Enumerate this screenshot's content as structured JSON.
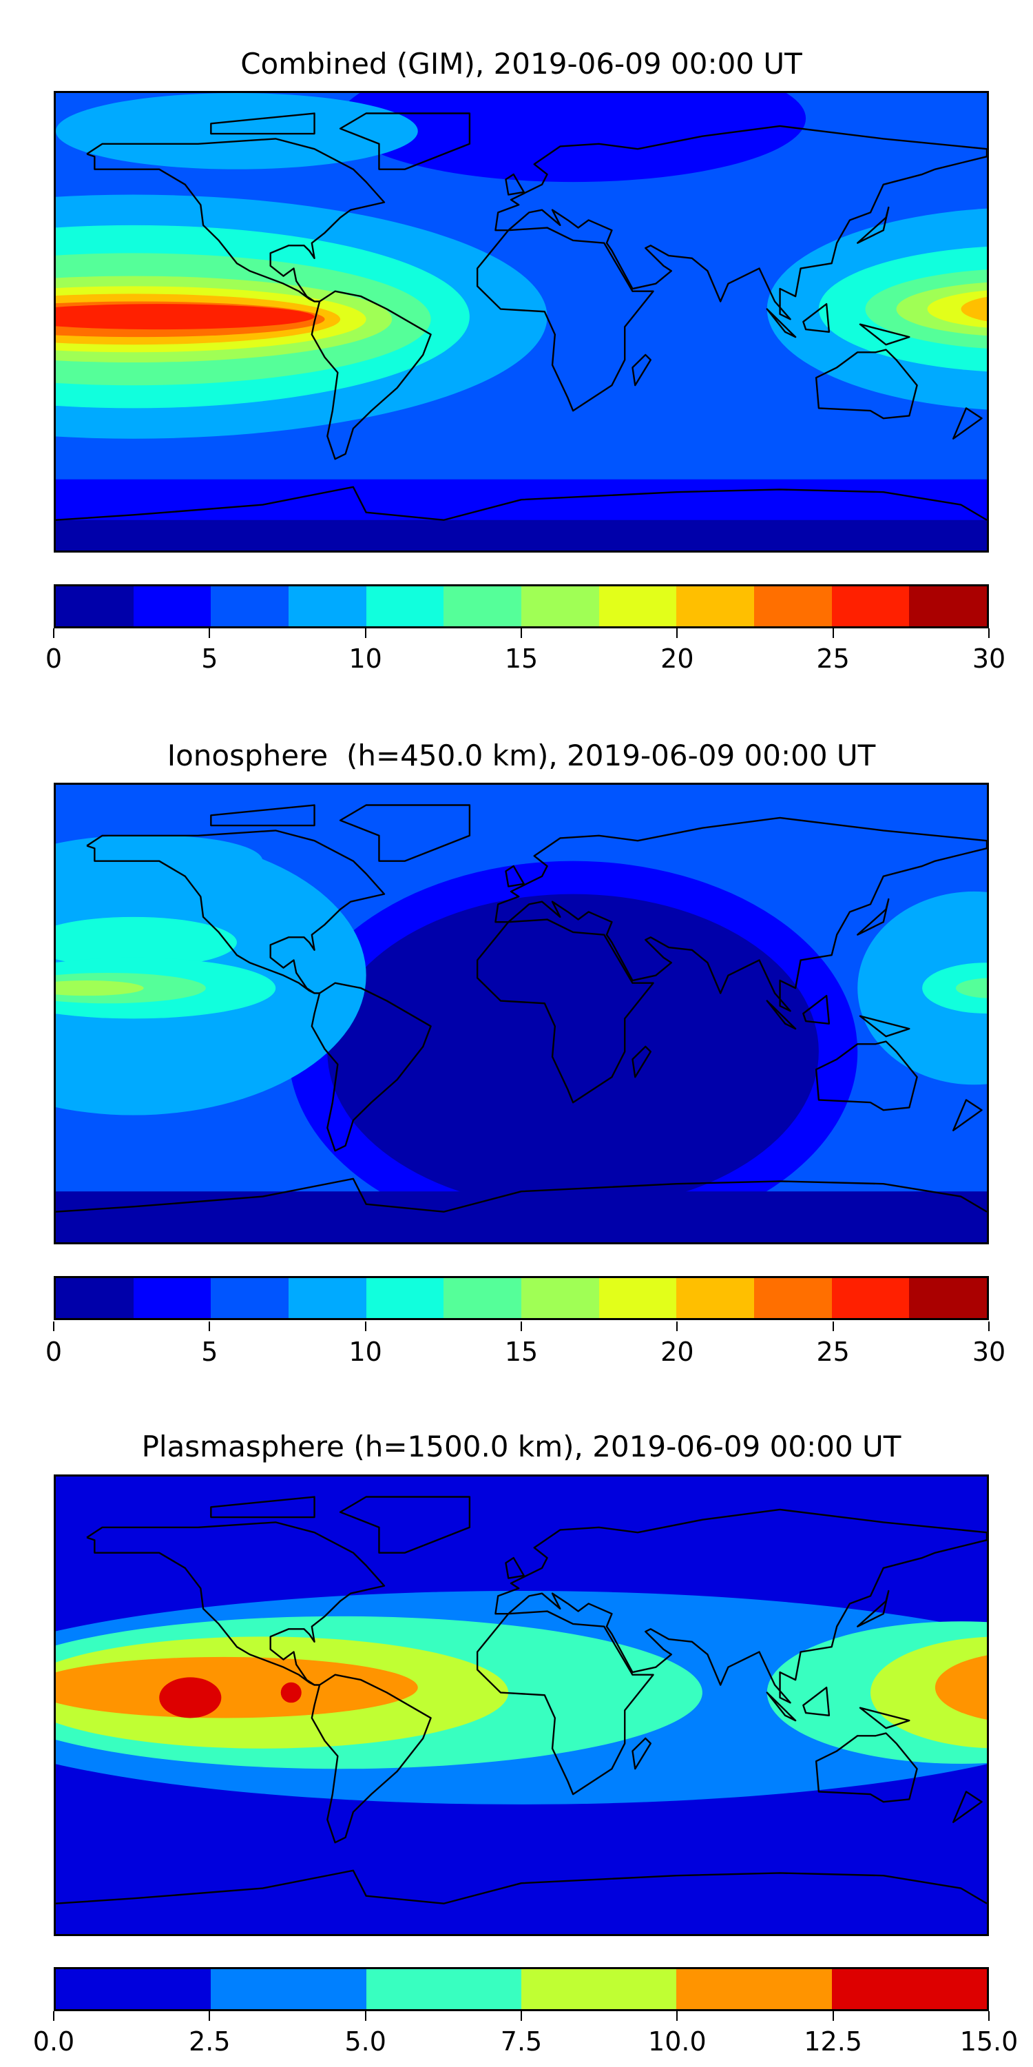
{
  "chart_data": [
    {
      "type": "heatmap",
      "title": "Combined (GIM), 2019-06-09 00:00 UT",
      "projection": "plate carree world map with coastlines",
      "colorbar": {
        "range": [
          0,
          30
        ],
        "levels": [
          0,
          2.5,
          5,
          7.5,
          10,
          12.5,
          15,
          17.5,
          20,
          22.5,
          25,
          27.5,
          30
        ],
        "colors": [
          "#0000aa",
          "#0000ff",
          "#0055ff",
          "#00aaff",
          "#11ffdd",
          "#55ff99",
          "#a0ff55",
          "#e2ff1a",
          "#ffbf00",
          "#ff6f00",
          "#ff2000",
          "#aa0000"
        ],
        "ticks": [
          "0",
          "5",
          "10",
          "15",
          "20",
          "25",
          "30"
        ]
      },
      "features": "maximum (25-27.5) over equatorial east Pacific; secondary maximum (20-22.5) over western Pacific near 180E; minimum (0-2.5) over Antarctica"
    },
    {
      "type": "heatmap",
      "title": "Ionosphere  (h=450.0 km), 2019-06-09 00:00 UT",
      "projection": "plate carree world map with coastlines",
      "colorbar": {
        "range": [
          0,
          30
        ],
        "levels": [
          0,
          2.5,
          5,
          7.5,
          10,
          12.5,
          15,
          17.5,
          20,
          22.5,
          25,
          27.5,
          30
        ],
        "colors": [
          "#0000aa",
          "#0000ff",
          "#0055ff",
          "#00aaff",
          "#11ffdd",
          "#55ff99",
          "#a0ff55",
          "#e2ff1a",
          "#ffbf00",
          "#ff6f00",
          "#ff2000",
          "#aa0000"
        ],
        "ticks": [
          "0",
          "5",
          "10",
          "15",
          "20",
          "25",
          "30"
        ]
      },
      "features": "maximum (15-17.5) over central Pacific near 10N; minimum (0-2.5) over Atlantic, Africa and southern latitudes"
    },
    {
      "type": "heatmap",
      "title": "Plasmasphere (h=1500.0 km), 2019-06-09 00:00 UT",
      "projection": "plate carree world map with coastlines",
      "colorbar": {
        "range": [
          0,
          15
        ],
        "levels": [
          0,
          2.5,
          5,
          7.5,
          10,
          12.5,
          15
        ],
        "colors": [
          "#0000dd",
          "#0080ff",
          "#38ffc0",
          "#c0ff33",
          "#ff9400",
          "#dd0000"
        ],
        "ticks": [
          "0.0",
          "2.5",
          "5.0",
          "7.5",
          "10.0",
          "12.5",
          "15.0"
        ]
      },
      "features": "maximum (12.5-15) over east Pacific and northern South America; minimum (0-2.5) at high latitudes"
    }
  ]
}
